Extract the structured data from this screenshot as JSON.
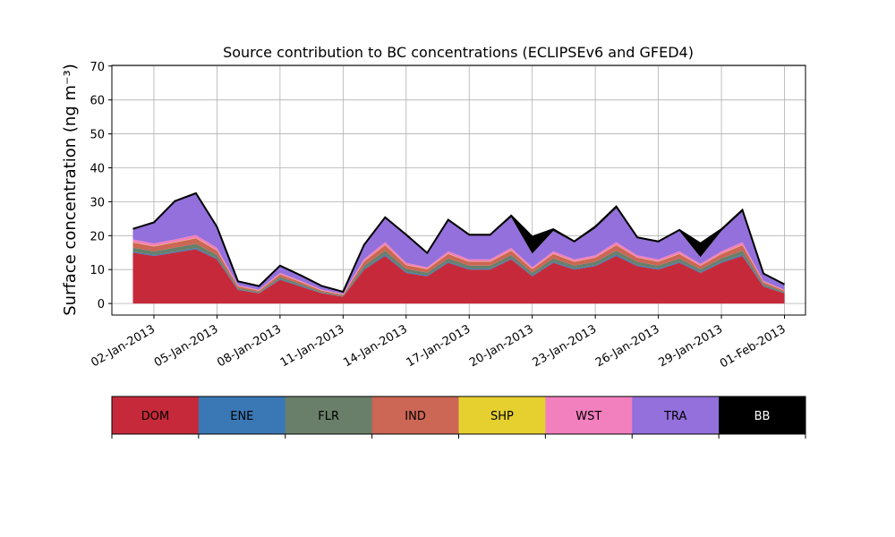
{
  "chart_data": {
    "type": "area",
    "title": "Source contribution to BC concentrations (ECLIPSEv6 and GFED4)",
    "ylabel": "Surface concentration (ng m⁻³)",
    "xlabel": "",
    "ylim": [
      0,
      70
    ],
    "yticks": [
      0,
      10,
      20,
      30,
      40,
      50,
      60,
      70
    ],
    "xlim": [
      "2012-12-31",
      "2013-02-02"
    ],
    "xticks": [
      "2013-01-02",
      "2013-01-05",
      "2013-01-08",
      "2013-01-11",
      "2013-01-14",
      "2013-01-17",
      "2013-01-20",
      "2013-01-23",
      "2013-01-26",
      "2013-01-29",
      "2013-02-01"
    ],
    "xtick_labels": [
      "02-Jan-2013",
      "05-Jan-2013",
      "08-Jan-2013",
      "11-Jan-2013",
      "14-Jan-2013",
      "17-Jan-2013",
      "20-Jan-2013",
      "23-Jan-2013",
      "26-Jan-2013",
      "29-Jan-2013",
      "01-Feb-2013"
    ],
    "grid": true,
    "stacked": true,
    "x": [
      "2013-01-01",
      "2013-01-02",
      "2013-01-03",
      "2013-01-04",
      "2013-01-05",
      "2013-01-06",
      "2013-01-07",
      "2013-01-08",
      "2013-01-09",
      "2013-01-10",
      "2013-01-11",
      "2013-01-12",
      "2013-01-13",
      "2013-01-14",
      "2013-01-15",
      "2013-01-16",
      "2013-01-17",
      "2013-01-18",
      "2013-01-19",
      "2013-01-20",
      "2013-01-21",
      "2013-01-22",
      "2013-01-23",
      "2013-01-24",
      "2013-01-25",
      "2013-01-26",
      "2013-01-27",
      "2013-01-28",
      "2013-01-29",
      "2013-01-30",
      "2013-01-31",
      "2013-02-01"
    ],
    "series": [
      {
        "name": "DOM",
        "color": "#c62a3a",
        "values": [
          15,
          14,
          15,
          16,
          13,
          4,
          3,
          7,
          5,
          3,
          2,
          10,
          14,
          9,
          8,
          12,
          10,
          10,
          13,
          8,
          12,
          10,
          11,
          14,
          11,
          10,
          12,
          9,
          12,
          14,
          5,
          3
        ]
      },
      {
        "name": "ENE",
        "color": "#3a78b5",
        "values": [
          0.3,
          0.3,
          0.3,
          0.3,
          0.3,
          0.2,
          0.1,
          0.2,
          0.2,
          0.1,
          0.1,
          0.3,
          0.4,
          0.3,
          0.3,
          0.3,
          0.3,
          0.3,
          0.3,
          0.3,
          0.3,
          0.3,
          0.3,
          0.4,
          0.3,
          0.3,
          0.3,
          0.3,
          0.3,
          0.4,
          0.2,
          0.1
        ]
      },
      {
        "name": "FLR",
        "color": "#6a7f6a",
        "values": [
          1.2,
          1.1,
          1.2,
          1.3,
          1.0,
          0.4,
          0.3,
          0.6,
          0.5,
          0.3,
          0.2,
          0.9,
          1.2,
          0.9,
          0.8,
          1.0,
          0.9,
          0.9,
          1.0,
          0.8,
          1.0,
          0.9,
          1.0,
          1.2,
          1.0,
          0.9,
          1.0,
          0.8,
          1.0,
          1.2,
          0.5,
          0.3
        ]
      },
      {
        "name": "IND",
        "color": "#cc6655",
        "values": [
          1.5,
          1.4,
          1.5,
          1.6,
          1.3,
          0.5,
          0.4,
          0.8,
          0.6,
          0.4,
          0.3,
          1.2,
          1.6,
          1.1,
          1.0,
          1.3,
          1.1,
          1.1,
          1.3,
          1.0,
          1.3,
          1.1,
          1.2,
          1.6,
          1.2,
          1.1,
          1.3,
          1.0,
          1.3,
          1.6,
          0.6,
          0.4
        ]
      },
      {
        "name": "SHP",
        "color": "#e5d030",
        "values": [
          0.1,
          0.1,
          0.1,
          0.1,
          0.1,
          0.05,
          0.05,
          0.05,
          0.05,
          0.05,
          0.05,
          0.1,
          0.1,
          0.1,
          0.1,
          0.1,
          0.1,
          0.1,
          0.1,
          0.1,
          0.1,
          0.1,
          0.1,
          0.1,
          0.1,
          0.1,
          0.1,
          0.1,
          0.1,
          0.1,
          0.05,
          0.05
        ]
      },
      {
        "name": "WST",
        "color": "#f27fbe",
        "values": [
          0.8,
          0.8,
          0.8,
          0.9,
          0.7,
          0.3,
          0.2,
          0.4,
          0.3,
          0.2,
          0.2,
          0.6,
          0.8,
          0.6,
          0.5,
          0.7,
          0.6,
          0.6,
          0.7,
          0.5,
          0.7,
          0.6,
          0.6,
          0.8,
          0.6,
          0.6,
          0.7,
          0.5,
          0.7,
          0.8,
          0.3,
          0.2
        ]
      },
      {
        "name": "TRA",
        "color": "#9370db",
        "values": [
          3,
          6,
          11,
          12,
          6,
          1,
          1,
          2,
          1.5,
          1,
          0.5,
          4,
          7,
          8,
          4,
          9,
          7,
          7,
          9,
          4,
          6,
          5,
          8,
          10,
          5,
          5,
          6,
          2,
          6,
          9,
          2,
          1.5
        ]
      },
      {
        "name": "BB",
        "color": "#000000",
        "values": [
          0.1,
          0.2,
          0.3,
          0.3,
          0.2,
          0.1,
          0.1,
          0.1,
          0.1,
          0.1,
          0.1,
          0.2,
          0.3,
          0.3,
          0.2,
          0.3,
          0.3,
          0.3,
          0.5,
          5,
          0.5,
          0.3,
          0.5,
          0.5,
          0.3,
          0.3,
          0.3,
          4,
          0.5,
          0.5,
          0.2,
          0.1
        ]
      }
    ],
    "legend": {
      "placement": "bottom",
      "entries": [
        "DOM",
        "ENE",
        "FLR",
        "IND",
        "SHP",
        "WST",
        "TRA",
        "BB"
      ]
    }
  }
}
